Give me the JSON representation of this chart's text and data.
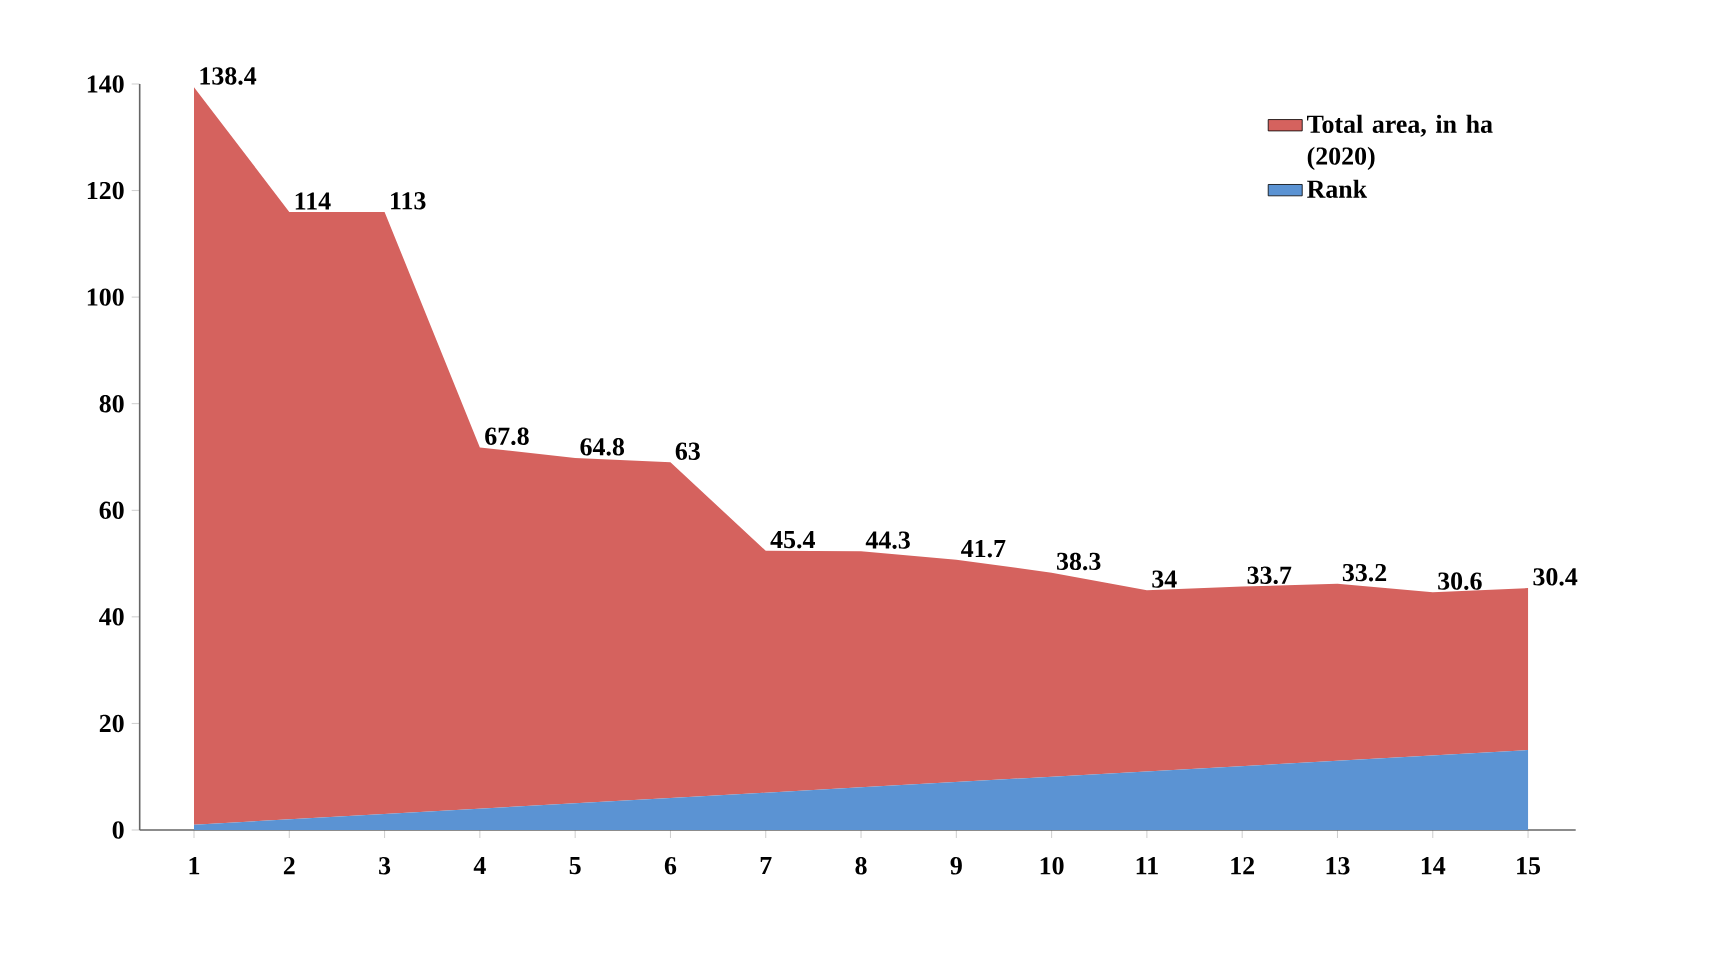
{
  "chart_data": {
    "type": "area",
    "stacked": true,
    "legend": "top right",
    "ylim": [
      0,
      140
    ],
    "yticks": [
      0,
      20,
      40,
      60,
      80,
      100,
      120,
      140
    ],
    "categories": [
      "1",
      "2",
      "3",
      "4",
      "5",
      "6",
      "7",
      "8",
      "9",
      "10",
      "11",
      "12",
      "13",
      "14",
      "15"
    ],
    "series": [
      {
        "name": "Rank",
        "color": "#5b93d3",
        "values": [
          1,
          2,
          3,
          4,
          5,
          6,
          7,
          8,
          9,
          10,
          11,
          12,
          13,
          14,
          15
        ]
      },
      {
        "name": "Total area, in ha (2020)",
        "color": "#d5625e",
        "values": [
          138.4,
          114,
          113,
          67.8,
          64.8,
          63,
          45.4,
          44.3,
          41.7,
          38.3,
          34,
          33.7,
          33.2,
          30.6,
          30.4
        ],
        "value_labels": [
          "138.4",
          "114",
          "113",
          "67.8",
          "64.8",
          "63",
          "45.4",
          "44.3",
          "41.7",
          "38.3",
          "34",
          "33.7",
          "33.2",
          "30.6",
          "30.4"
        ]
      }
    ]
  }
}
